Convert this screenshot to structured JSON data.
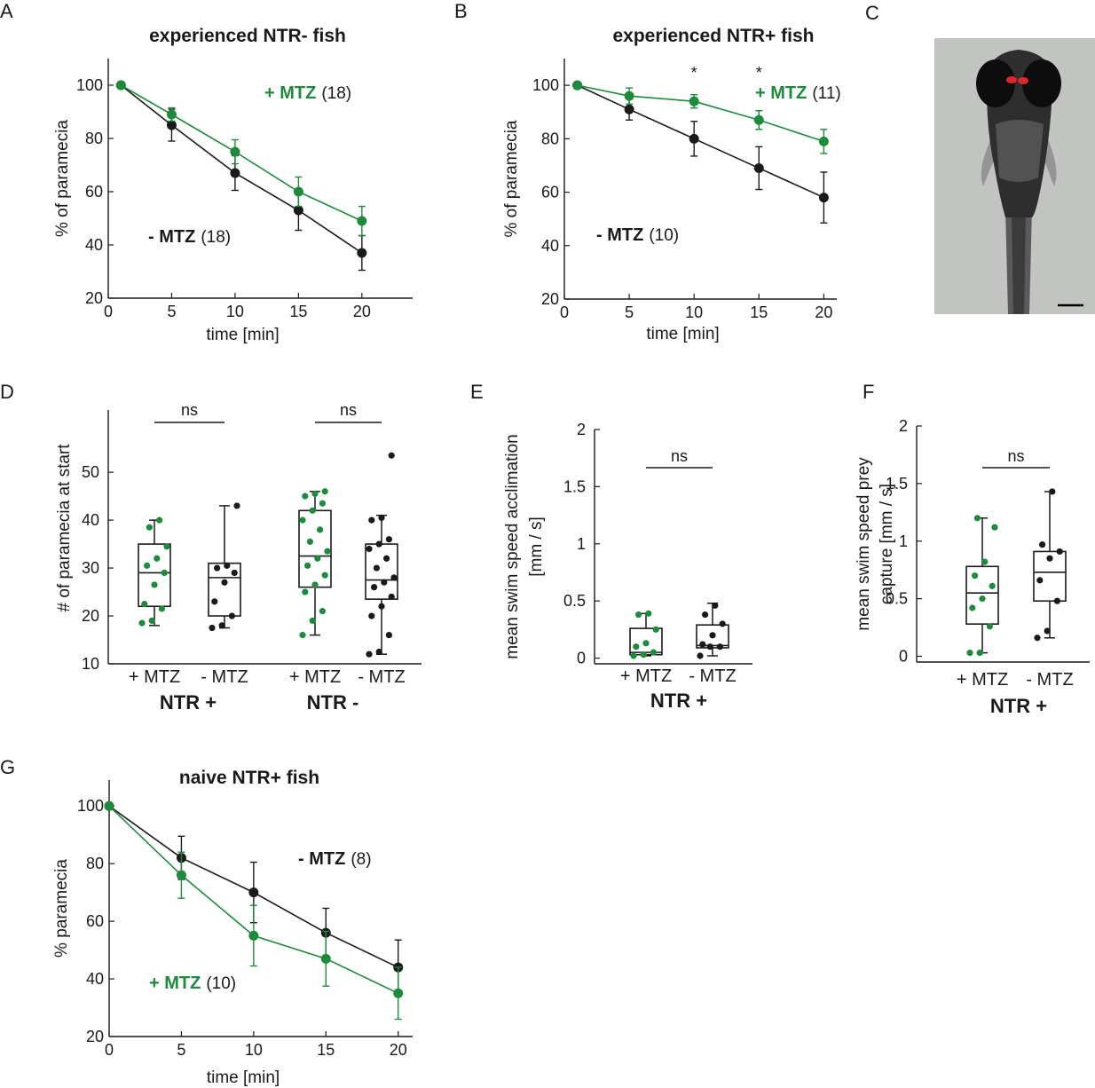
{
  "panel_labels": {
    "A": "A",
    "B": "B",
    "C": "C",
    "D": "D",
    "E": "E",
    "F": "F",
    "G": "G"
  },
  "colors": {
    "mtz_plus": "#1e8a3c",
    "mtz_minus": "#1a1a1a",
    "image_bg": "#c2c4c1",
    "neuron_marker": "#e0262b"
  },
  "panel_c": {
    "image": "zebrafish larva micrograph",
    "scale_bar_icon": "scale-bar-icon"
  },
  "chart_data": [
    {
      "id": "A",
      "type": "line",
      "title": "experienced NTR- fish",
      "xlabel": "time [min]",
      "ylabel": "% of paramecia",
      "xlim": [
        0,
        24
      ],
      "ylim": [
        20,
        110
      ],
      "xticks": [
        0,
        5,
        10,
        15,
        20
      ],
      "yticks": [
        20,
        40,
        60,
        80,
        100
      ],
      "series": [
        {
          "key": "plus",
          "x": [
            1,
            5,
            10,
            15,
            20
          ],
          "y": [
            100,
            89,
            75,
            60,
            49
          ],
          "err": [
            0,
            2.5,
            4.5,
            5.5,
            5.5
          ]
        },
        {
          "key": "minus",
          "x": [
            1,
            5,
            10,
            15,
            20
          ],
          "y": [
            100,
            85,
            67,
            53,
            37
          ],
          "err": [
            0,
            6,
            6.5,
            7.5,
            6.5
          ]
        }
      ],
      "annotations": [
        {
          "key": "plus",
          "label": "+ MTZ",
          "n": "(18)"
        },
        {
          "key": "minus",
          "label": "- MTZ",
          "n": "(18)"
        }
      ]
    },
    {
      "id": "B",
      "type": "line",
      "title": "experienced NTR+ fish",
      "xlabel": "time [min]",
      "ylabel": "% of paramecia",
      "xlim": [
        0,
        21
      ],
      "ylim": [
        20,
        110
      ],
      "xticks": [
        0,
        5,
        10,
        15,
        20
      ],
      "yticks": [
        20,
        40,
        60,
        80,
        100
      ],
      "series": [
        {
          "key": "plus",
          "x": [
            1,
            5,
            10,
            15,
            20
          ],
          "y": [
            100,
            96,
            94,
            87,
            79
          ],
          "err": [
            0,
            3,
            2.5,
            3.5,
            4.5
          ]
        },
        {
          "key": "minus",
          "x": [
            1,
            5,
            10,
            15,
            20
          ],
          "y": [
            100,
            91,
            80,
            69,
            58
          ],
          "err": [
            0,
            4,
            6.5,
            8,
            9.5
          ]
        }
      ],
      "significance": [
        {
          "x": 10,
          "label": "*"
        },
        {
          "x": 15,
          "label": "*"
        }
      ],
      "annotations": [
        {
          "key": "plus",
          "label": "+ MTZ",
          "n": "(11)"
        },
        {
          "key": "minus",
          "label": "- MTZ",
          "n": "(10)"
        }
      ]
    },
    {
      "id": "D",
      "type": "box",
      "ylabel": "# of paramecia at start",
      "yticks": [
        10,
        20,
        30,
        40,
        50
      ],
      "ylim": [
        10,
        63
      ],
      "groups": [
        {
          "label": "+ MTZ",
          "key": "plus",
          "q1": 22,
          "median": 29,
          "q3": 35,
          "lo": 18,
          "hi": 40,
          "points": [
            18.5,
            19,
            21.5,
            22.5,
            26.5,
            29,
            30.5,
            32,
            34.5,
            38.5,
            40
          ]
        },
        {
          "label": "- MTZ",
          "key": "minus",
          "q1": 20,
          "median": 28,
          "q3": 31,
          "lo": 17.5,
          "hi": 43,
          "points": [
            17.5,
            18,
            20,
            23,
            27,
            29,
            30,
            30.5,
            43
          ]
        },
        {
          "label": "+ MTZ",
          "key": "plus",
          "q1": 26,
          "median": 32.5,
          "q3": 42,
          "lo": 16,
          "hi": 46,
          "points": [
            16,
            19,
            21,
            25,
            26.5,
            28.5,
            30.5,
            32,
            33.5,
            35.5,
            38,
            40,
            42,
            43.5,
            45,
            45.5,
            46
          ]
        },
        {
          "label": "- MTZ",
          "key": "minus",
          "q1": 23.5,
          "median": 27.5,
          "q3": 35,
          "lo": 12,
          "hi": 41,
          "points": [
            12,
            12.5,
            16,
            20,
            22,
            24,
            26,
            27,
            28,
            30,
            32,
            34,
            35,
            36,
            40,
            40.5,
            53.5
          ]
        }
      ],
      "comparisons": [
        {
          "between": [
            0,
            1
          ],
          "label": "ns"
        },
        {
          "between": [
            2,
            3
          ],
          "label": "ns"
        }
      ],
      "categories": [
        {
          "label": "NTR +",
          "groups": [
            0,
            1
          ]
        },
        {
          "label": "NTR -",
          "groups": [
            2,
            3
          ]
        }
      ]
    },
    {
      "id": "E",
      "type": "box",
      "ylabel_lines": [
        "mean swim speed acclimation",
        "[mm / s]"
      ],
      "yticks": [
        0,
        0.5,
        1,
        1.5,
        2
      ],
      "yticklabels": [
        "0",
        "0.5",
        "1",
        "1.5",
        "2"
      ],
      "ylim": [
        -0.05,
        2
      ],
      "groups": [
        {
          "label": "+ MTZ",
          "key": "plus",
          "q1": 0.03,
          "median": 0.05,
          "q3": 0.26,
          "lo": 0.02,
          "hi": 0.39,
          "points": [
            0.02,
            0.03,
            0.05,
            0.1,
            0.13,
            0.25,
            0.38,
            0.39
          ]
        },
        {
          "label": "- MTZ",
          "key": "minus",
          "q1": 0.09,
          "median": 0.11,
          "q3": 0.29,
          "lo": 0.02,
          "hi": 0.48,
          "points": [
            0.02,
            0.1,
            0.1,
            0.12,
            0.2,
            0.3,
            0.38,
            0.46
          ]
        }
      ],
      "comparisons": [
        {
          "between": [
            0,
            1
          ],
          "label": "ns"
        }
      ],
      "categories": [
        {
          "label": "NTR +",
          "groups": [
            0,
            1
          ]
        }
      ]
    },
    {
      "id": "F",
      "type": "box",
      "ylabel_lines": [
        "mean swim speed prey",
        "capture [mm / s]"
      ],
      "yticks": [
        0,
        0.5,
        1,
        1.5,
        2
      ],
      "yticklabels": [
        "0",
        "0.5",
        "1",
        "1.5",
        "2"
      ],
      "ylim": [
        -0.05,
        2
      ],
      "groups": [
        {
          "label": "+ MTZ",
          "key": "plus",
          "q1": 0.28,
          "median": 0.55,
          "q3": 0.78,
          "lo": 0.03,
          "hi": 1.2,
          "points": [
            0.03,
            0.03,
            0.26,
            0.42,
            0.5,
            0.61,
            0.7,
            0.82,
            1.12,
            1.2
          ]
        },
        {
          "label": "- MTZ",
          "key": "minus",
          "q1": 0.48,
          "median": 0.73,
          "q3": 0.91,
          "lo": 0.16,
          "hi": 1.43,
          "points": [
            0.16,
            0.22,
            0.48,
            0.66,
            0.85,
            0.91,
            0.97,
            1.43
          ]
        }
      ],
      "comparisons": [
        {
          "between": [
            0,
            1
          ],
          "label": "ns"
        }
      ],
      "categories": [
        {
          "label": "NTR +",
          "groups": [
            0,
            1
          ]
        }
      ]
    },
    {
      "id": "G",
      "type": "line",
      "title": "naive NTR+ fish",
      "xlabel": "time [min]",
      "ylabel": "% paramecia",
      "xlim": [
        0,
        21
      ],
      "ylim": [
        20,
        109
      ],
      "xticks": [
        0,
        5,
        10,
        15,
        20
      ],
      "yticks": [
        20,
        40,
        60,
        80,
        100
      ],
      "series": [
        {
          "key": "plus",
          "x": [
            0,
            5,
            10,
            15,
            20
          ],
          "y": [
            100,
            76,
            55,
            47,
            35
          ],
          "err": [
            0,
            8,
            10.5,
            9.5,
            9
          ]
        },
        {
          "key": "minus",
          "x": [
            0,
            5,
            10,
            15,
            20
          ],
          "y": [
            100,
            82,
            70,
            56,
            44
          ],
          "err": [
            0,
            7.5,
            10.5,
            8.5,
            9.5
          ]
        }
      ],
      "annotations": [
        {
          "key": "plus",
          "label": "+ MTZ",
          "n": "(10)"
        },
        {
          "key": "minus",
          "label": "- MTZ",
          "n": "(8)"
        }
      ]
    }
  ]
}
